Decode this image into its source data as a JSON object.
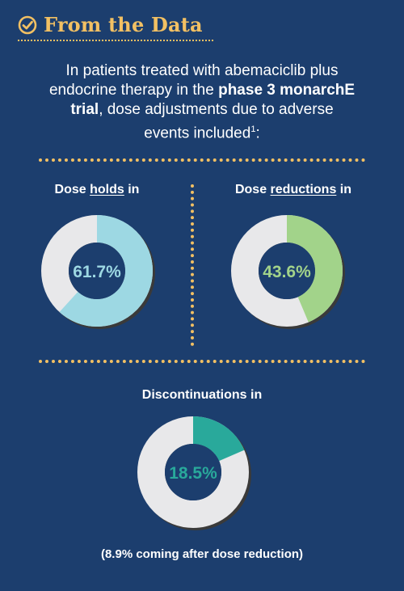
{
  "header": {
    "title": "From the Data",
    "icon": "check-circle-icon",
    "accent": "#f2c063"
  },
  "intro": {
    "line1": "In patients treated with abemaciclib plus",
    "line2a": "endocrine therapy in the ",
    "line2b": "phase 3 monarchE",
    "line3a": "trial",
    "line3b": ", dose adjustments due to adverse",
    "line4": "events included",
    "sup": "1",
    "tail": ":"
  },
  "charts": {
    "holds": {
      "prefix": "Dose ",
      "emph": "holds",
      "suffix": " in"
    },
    "reductions": {
      "prefix": "Dose ",
      "emph": "reductions",
      "suffix": " in"
    },
    "discontinuations": {
      "label": "Discontinuations in"
    }
  },
  "note": "(8.9% coming after dose reduction)",
  "colors": {
    "background": "#1c3e6e",
    "ring_remainder": "#e8e8ea",
    "holds": "#9dd8e3",
    "reductions": "#a2d38a",
    "discontinuations": "#29a99b"
  },
  "chart_data": [
    {
      "type": "pie",
      "variant": "donut",
      "labels": [
        "Dose holds"
      ],
      "values": [
        61.7
      ],
      "value_label": "61.7%",
      "color": "#9dd8e3"
    },
    {
      "type": "pie",
      "variant": "donut",
      "labels": [
        "Dose reductions"
      ],
      "values": [
        43.6
      ],
      "value_label": "43.6%",
      "color": "#a2d38a"
    },
    {
      "type": "pie",
      "variant": "donut",
      "labels": [
        "Discontinuations"
      ],
      "values": [
        18.5
      ],
      "value_label": "18.5%",
      "color": "#29a99b"
    }
  ]
}
